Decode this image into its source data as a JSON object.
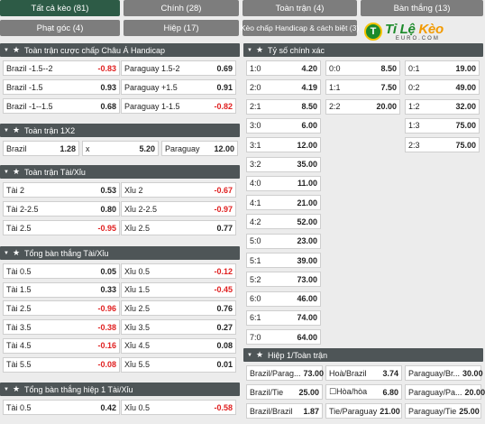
{
  "tabs": [
    {
      "label": "Tất cả kèo (81)",
      "active": true
    },
    {
      "label": "Chính (28)"
    },
    {
      "label": "Toàn trận (4)"
    },
    {
      "label": "Bàn thắng (13)"
    },
    {
      "label": "Phạt góc (4)"
    },
    {
      "label": "Hiệp (17)"
    },
    {
      "label": "Kèo chấp Handicap & cách biệt (3)"
    }
  ],
  "logo": {
    "ball": "T",
    "brand_a": "Tỉ Lệ ",
    "brand_b": "Kèo",
    "sub": "EURO.COM"
  },
  "sections": {
    "handicap": {
      "title": "Toàn trận cược chấp Châu Á Handicap",
      "rows": [
        [
          {
            "label": "Brazil -1.5--2",
            "value": "-0.83",
            "neg": true
          },
          {
            "label": "Paraguay 1.5-2",
            "value": "0.69"
          }
        ],
        [
          {
            "label": "Brazil -1.5",
            "value": "0.93"
          },
          {
            "label": "Paraguay +1.5",
            "value": "0.91"
          }
        ],
        [
          {
            "label": "Brazil -1--1.5",
            "value": "0.68"
          },
          {
            "label": "Paraguay 1-1.5",
            "value": "-0.82",
            "neg": true
          }
        ]
      ]
    },
    "onextwo": {
      "title": "Toàn trận 1X2",
      "rows": [
        [
          {
            "label": "Brazil",
            "value": "1.28"
          },
          {
            "label": "x",
            "value": "5.20"
          },
          {
            "label": "Paraguay",
            "value": "12.00"
          }
        ]
      ]
    },
    "taixiu": {
      "title": "Toàn trận Tài/Xỉu",
      "rows": [
        [
          {
            "label": "Tài 2",
            "value": "0.53"
          },
          {
            "label": "Xỉu 2",
            "value": "-0.67",
            "neg": true
          }
        ],
        [
          {
            "label": "Tài 2-2.5",
            "value": "0.80"
          },
          {
            "label": "Xỉu 2-2.5",
            "value": "-0.97",
            "neg": true
          }
        ],
        [
          {
            "label": "Tài 2.5",
            "value": "-0.95",
            "neg": true
          },
          {
            "label": "Xỉu 2.5",
            "value": "0.77"
          }
        ]
      ]
    },
    "tongban": {
      "title": "Tổng bàn thắng Tài/Xỉu",
      "rows": [
        [
          {
            "label": "Tài 0.5",
            "value": "0.05"
          },
          {
            "label": "Xỉu 0.5",
            "value": "-0.12",
            "neg": true
          }
        ],
        [
          {
            "label": "Tài 1.5",
            "value": "0.33"
          },
          {
            "label": "Xỉu 1.5",
            "value": "-0.45",
            "neg": true
          }
        ],
        [
          {
            "label": "Tài 2.5",
            "value": "-0.96",
            "neg": true
          },
          {
            "label": "Xỉu 2.5",
            "value": "0.76"
          }
        ],
        [
          {
            "label": "Tài 3.5",
            "value": "-0.38",
            "neg": true
          },
          {
            "label": "Xỉu 3.5",
            "value": "0.27"
          }
        ],
        [
          {
            "label": "Tài 4.5",
            "value": "-0.16",
            "neg": true
          },
          {
            "label": "Xỉu 4.5",
            "value": "0.08"
          }
        ],
        [
          {
            "label": "Tài 5.5",
            "value": "-0.08",
            "neg": true
          },
          {
            "label": "Xỉu 5.5",
            "value": "0.01"
          }
        ]
      ]
    },
    "tongban_h1": {
      "title": "Tổng bàn thắng hiệp 1 Tài/Xỉu",
      "rows": [
        [
          {
            "label": "Tài 0.5",
            "value": "0.42"
          },
          {
            "label": "Xỉu 0.5",
            "value": "-0.58",
            "neg": true
          }
        ]
      ]
    },
    "tyso": {
      "title": "Tỷ số chính xác",
      "col1": [
        {
          "label": "1:0",
          "value": "4.20"
        },
        {
          "label": "2:0",
          "value": "4.19"
        },
        {
          "label": "2:1",
          "value": "8.50"
        },
        {
          "label": "3:0",
          "value": "6.00"
        },
        {
          "label": "3:1",
          "value": "12.00"
        },
        {
          "label": "3:2",
          "value": "35.00"
        },
        {
          "label": "4:0",
          "value": "11.00"
        },
        {
          "label": "4:1",
          "value": "21.00"
        },
        {
          "label": "4:2",
          "value": "52.00"
        },
        {
          "label": "5:0",
          "value": "23.00"
        },
        {
          "label": "5:1",
          "value": "39.00"
        },
        {
          "label": "5:2",
          "value": "73.00"
        },
        {
          "label": "6:0",
          "value": "46.00"
        },
        {
          "label": "6:1",
          "value": "74.00"
        },
        {
          "label": "7:0",
          "value": "64.00"
        }
      ],
      "col2": [
        {
          "label": "0:0",
          "value": "8.50"
        },
        {
          "label": "1:1",
          "value": "7.50"
        },
        {
          "label": "2:2",
          "value": "20.00"
        }
      ],
      "col3": [
        {
          "label": "0:1",
          "value": "19.00"
        },
        {
          "label": "0:2",
          "value": "49.00"
        },
        {
          "label": "1:2",
          "value": "32.00"
        },
        {
          "label": "1:3",
          "value": "75.00"
        },
        {
          "label": "2:3",
          "value": "75.00"
        }
      ]
    },
    "htft": {
      "title": "Hiệp 1/Toàn trận",
      "rows": [
        [
          {
            "label": "Brazil/Parag...",
            "value": "73.00"
          },
          {
            "label": "Hoà/Brazil",
            "value": "3.74"
          },
          {
            "label": "Paraguay/Br...",
            "value": "30.00"
          }
        ],
        [
          {
            "label": "Brazil/Tie",
            "value": "25.00"
          },
          {
            "label": "☐Hòa/hòa",
            "value": "6.80"
          },
          {
            "label": "Paraguay/Pa...",
            "value": "20.00"
          }
        ],
        [
          {
            "label": "Brazil/Brazil",
            "value": "1.87"
          },
          {
            "label": "Tie/Paraguay",
            "value": "21.00"
          },
          {
            "label": "Paraguay/Tie",
            "value": "25.00"
          }
        ]
      ]
    }
  }
}
